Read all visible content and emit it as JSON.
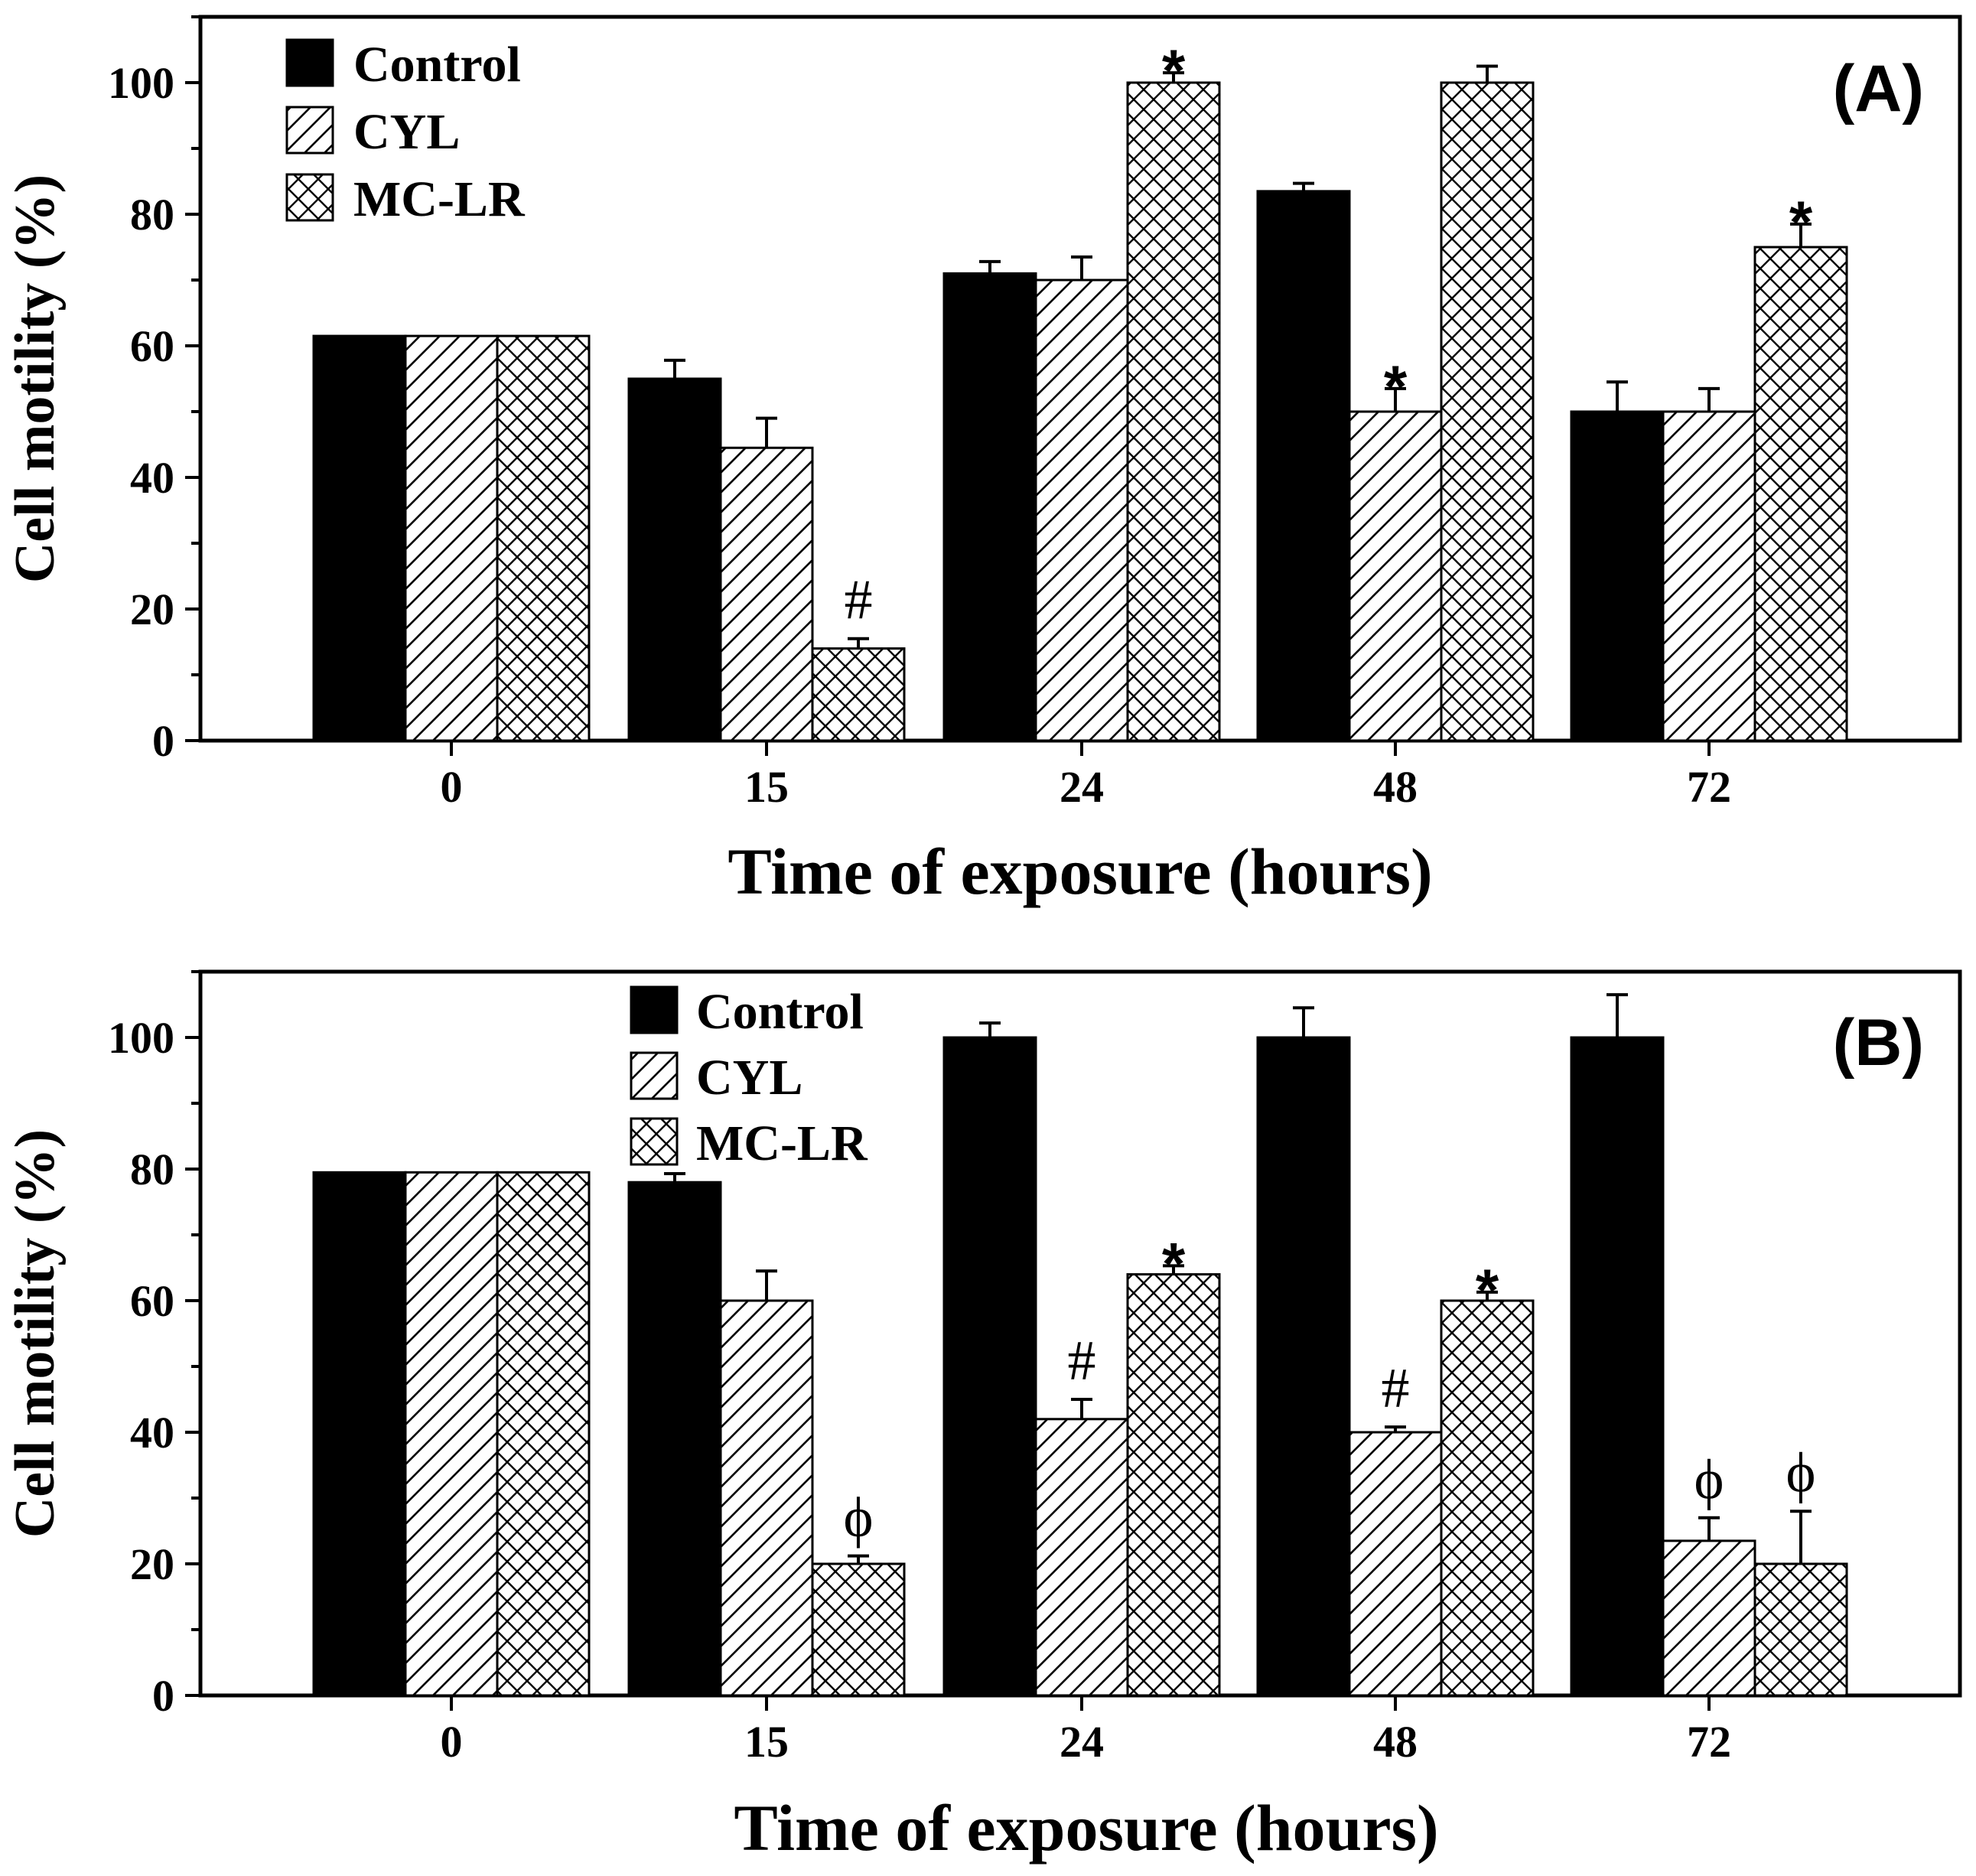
{
  "chart_data": [
    {
      "type": "bar",
      "panel_label": "(A)",
      "categories": [
        "0",
        "15",
        "24",
        "48",
        "72"
      ],
      "xlabel": "Time of exposure (hours)",
      "ylabel": "Cell motility (%)",
      "ylim": [
        0,
        110
      ],
      "yticks": [
        "0",
        "20",
        "40",
        "60",
        "80",
        "100"
      ],
      "legend_position": "top-left",
      "series": [
        {
          "name": "Control",
          "fill": "solid",
          "color": "#000000",
          "values": [
            61.5,
            55,
            71,
            83.5,
            50
          ],
          "errors": [
            0,
            2.8,
            1.8,
            1.2,
            4.5
          ]
        },
        {
          "name": "CYL",
          "fill": "diagonal-hatch",
          "color": "#000000",
          "values": [
            61.5,
            44.5,
            70,
            50,
            50
          ],
          "errors": [
            0,
            4.5,
            3.5,
            3.5,
            3.5
          ]
        },
        {
          "name": "MC-LR",
          "fill": "cross-hatch",
          "color": "#000000",
          "values": [
            61.5,
            14,
            100,
            100,
            75
          ],
          "errors": [
            0,
            1.5,
            1.5,
            2.5,
            3.5
          ]
        }
      ],
      "annotations": [
        {
          "text": "#",
          "category": "15",
          "series": "MC-LR"
        },
        {
          "text": "*",
          "category": "24",
          "series": "MC-LR"
        },
        {
          "text": "*",
          "category": "48",
          "series": "CYL"
        },
        {
          "text": "*",
          "category": "72",
          "series": "MC-LR"
        }
      ]
    },
    {
      "type": "bar",
      "panel_label": "(B)",
      "categories": [
        "0",
        "15",
        "24",
        "48",
        "72"
      ],
      "xlabel": "Time of exposure (hours)",
      "ylabel": "Cell motility (%)",
      "ylim": [
        0,
        110
      ],
      "yticks": [
        "0",
        "20",
        "40",
        "60",
        "80",
        "100"
      ],
      "legend_position": "top-center",
      "series": [
        {
          "name": "Control",
          "fill": "solid",
          "color": "#000000",
          "values": [
            79.5,
            78,
            100,
            100,
            100
          ],
          "errors": [
            0,
            1.3,
            2.2,
            4.5,
            6.5
          ]
        },
        {
          "name": "CYL",
          "fill": "diagonal-hatch",
          "color": "#000000",
          "values": [
            79.5,
            60,
            42,
            40,
            23.5
          ],
          "errors": [
            0,
            4.5,
            3,
            0.8,
            3.5
          ]
        },
        {
          "name": "MC-LR",
          "fill": "cross-hatch",
          "color": "#000000",
          "values": [
            79.5,
            20,
            64,
            60,
            20
          ],
          "errors": [
            0,
            1.2,
            1.3,
            1.3,
            8
          ]
        }
      ],
      "annotations": [
        {
          "text": "ϕ",
          "category": "15",
          "series": "MC-LR"
        },
        {
          "text": "#",
          "category": "24",
          "series": "CYL"
        },
        {
          "text": "*",
          "category": "24",
          "series": "MC-LR"
        },
        {
          "text": "#",
          "category": "48",
          "series": "CYL"
        },
        {
          "text": "*",
          "category": "48",
          "series": "MC-LR"
        },
        {
          "text": "ϕ",
          "category": "72",
          "series": "CYL"
        },
        {
          "text": "ϕ",
          "category": "72",
          "series": "MC-LR"
        }
      ]
    }
  ]
}
